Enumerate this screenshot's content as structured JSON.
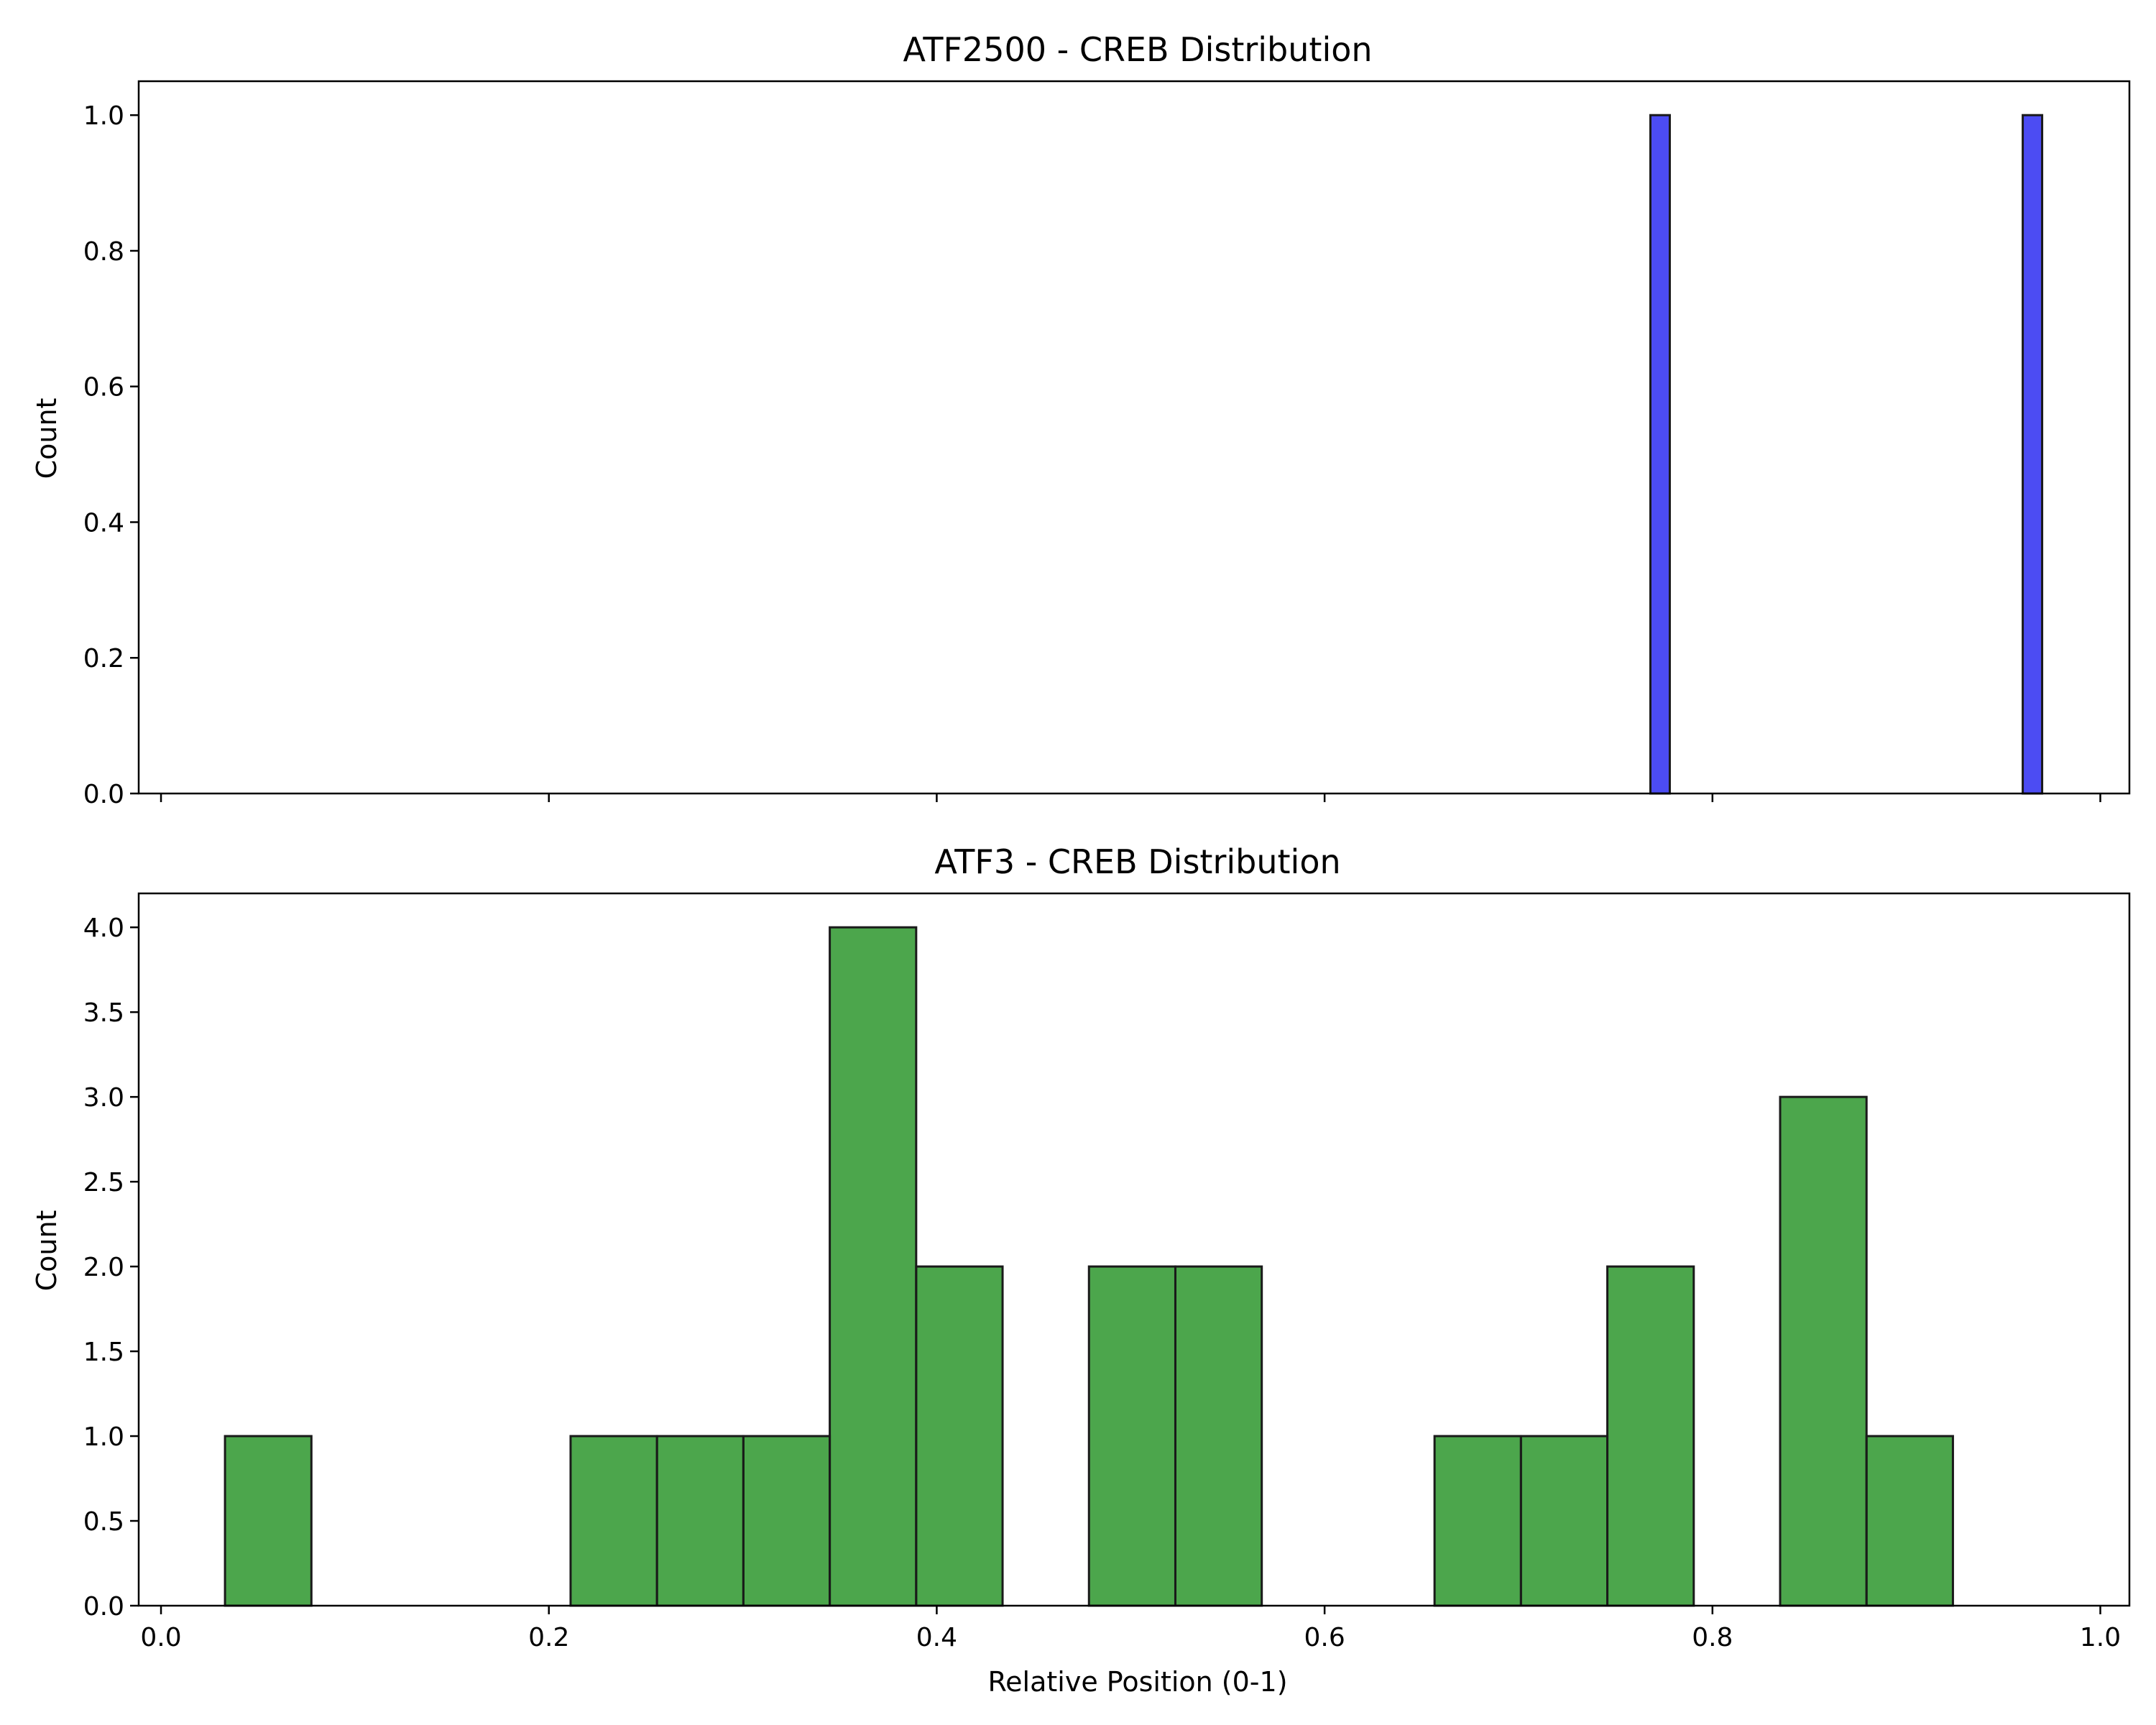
{
  "chart_data": [
    {
      "type": "bar",
      "title": "ATF2500 - CREB Distribution",
      "xlabel": "",
      "ylabel": "Count",
      "xlim": [
        -0.0115,
        1.015
      ],
      "ylim": [
        0,
        1.05
      ],
      "x_ticks": [
        0.0,
        0.2,
        0.4,
        0.6,
        0.8,
        1.0
      ],
      "x_tick_labels_shown": false,
      "y_ticks": [
        "0.0",
        "0.2",
        "0.4",
        "0.6",
        "0.8",
        "1.0"
      ],
      "bar_color": "#0000ee",
      "edge_color": "#1a1a1a",
      "bins": [
        {
          "x0": 0.768,
          "x1": 0.778,
          "count": 1
        },
        {
          "x0": 0.778,
          "x1": 0.96,
          "count": 0
        },
        {
          "x0": 0.96,
          "x1": 0.97,
          "count": 1
        }
      ]
    },
    {
      "type": "bar",
      "title": "ATF3 - CREB Distribution",
      "xlabel": "Relative Position (0-1)",
      "ylabel": "Count",
      "xlim": [
        -0.0115,
        1.015
      ],
      "ylim": [
        0,
        4.2
      ],
      "x_ticks": [
        "0.0",
        "0.2",
        "0.4",
        "0.6",
        "0.8",
        "1.0"
      ],
      "x_tick_labels_shown": true,
      "y_ticks": [
        "0.0",
        "0.5",
        "1.0",
        "1.5",
        "2.0",
        "2.5",
        "3.0",
        "3.5",
        "4.0"
      ],
      "bar_color": "#008000",
      "edge_color": "#1a1a1a",
      "bin_start": 0.033,
      "bin_width": 0.04455,
      "counts": [
        1,
        0,
        0,
        0,
        1,
        1,
        1,
        4,
        2,
        0,
        2,
        2,
        0,
        0,
        1,
        1,
        2,
        0,
        3,
        1
      ]
    }
  ]
}
